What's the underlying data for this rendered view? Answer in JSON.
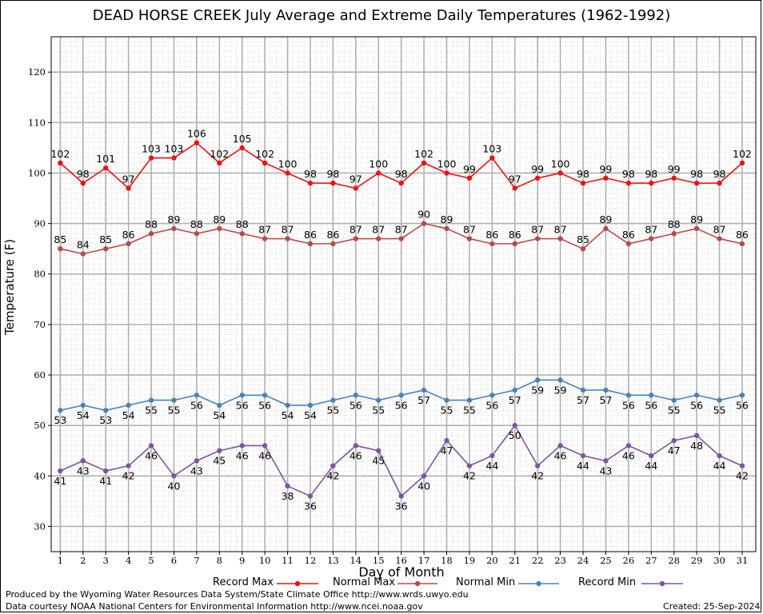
{
  "title": "DEAD HORSE CREEK July Average and Extreme Daily Temperatures (1962-1992)",
  "footer": {
    "left_line1": "Produced by the Wyoming Water Resources Data System/State Climate Office http://www.wrds.uwyo.edu",
    "left_line2": "Data courtesy NOAA National Centers for Environmental Information http://www.ncei.noaa.gov",
    "created": "Created:  25-Sep-2024"
  },
  "chart_data": {
    "type": "line",
    "title": "DEAD HORSE CREEK July Average and Extreme Daily Temperatures (1962-1992)",
    "xlabel": "Day of Month",
    "ylabel": "Temperature (F)",
    "x": [
      1,
      2,
      3,
      4,
      5,
      6,
      7,
      8,
      9,
      10,
      11,
      12,
      13,
      14,
      15,
      16,
      17,
      18,
      19,
      20,
      21,
      22,
      23,
      24,
      25,
      26,
      27,
      28,
      29,
      30,
      31
    ],
    "xlim": [
      0.6,
      31.6
    ],
    "ylim": [
      25,
      127
    ],
    "yticks": [
      30,
      40,
      50,
      60,
      70,
      80,
      90,
      100,
      110,
      120
    ],
    "grid": true,
    "legend_position": "bottom",
    "series": [
      {
        "name": "Record Max",
        "color": "#ee1111",
        "values": [
          102,
          98,
          101,
          97,
          103,
          103,
          106,
          102,
          105,
          102,
          100,
          98,
          98,
          97,
          100,
          98,
          102,
          100,
          99,
          103,
          97,
          99,
          100,
          98,
          99,
          98,
          98,
          99,
          98,
          98,
          102
        ]
      },
      {
        "name": "Normal Max",
        "color": "#b84a4a",
        "values": [
          85,
          84,
          85,
          86,
          88,
          89,
          88,
          89,
          88,
          87,
          87,
          86,
          86,
          87,
          87,
          87,
          90,
          89,
          87,
          86,
          86,
          87,
          87,
          85,
          89,
          86,
          87,
          88,
          89,
          87,
          86
        ]
      },
      {
        "name": "Normal Min",
        "color": "#4a82b8",
        "values": [
          53,
          54,
          53,
          54,
          55,
          55,
          56,
          54,
          56,
          56,
          54,
          54,
          55,
          56,
          55,
          56,
          57,
          55,
          55,
          56,
          57,
          59,
          59,
          57,
          57,
          56,
          56,
          55,
          56,
          55,
          56
        ]
      },
      {
        "name": "Record Min",
        "color": "#7d55a0",
        "values": [
          41,
          43,
          41,
          42,
          46,
          40,
          43,
          45,
          46,
          46,
          38,
          36,
          42,
          46,
          45,
          36,
          40,
          47,
          42,
          44,
          50,
          42,
          46,
          44,
          43,
          46,
          44,
          47,
          48,
          44,
          42
        ]
      }
    ]
  }
}
